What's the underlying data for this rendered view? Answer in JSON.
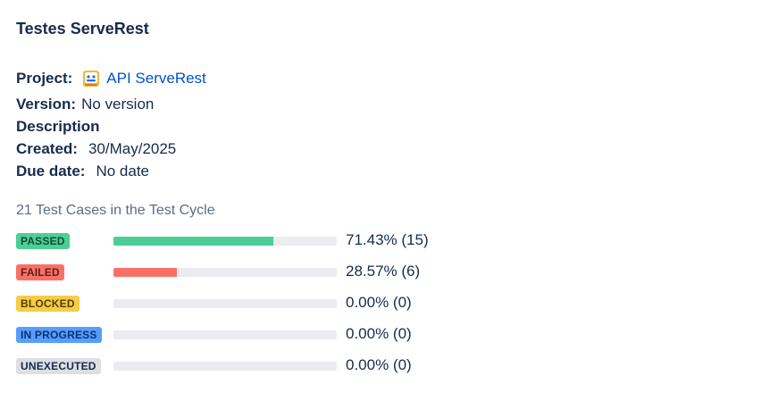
{
  "header": {
    "title": "Testes ServeRest"
  },
  "details": {
    "project_label": "Project:",
    "project_value": "API ServeRest",
    "project_icon": "project-avatar-icon",
    "version_label": "Version:",
    "version_value": "No version",
    "description_label": "Description",
    "created_label": "Created:",
    "created_value": "30/May/2025",
    "due_label": "Due date:",
    "due_value": "No date"
  },
  "summary": {
    "text": "21 Test Cases in the Test Cycle"
  },
  "statuses": [
    {
      "label": "PASSED",
      "percent_text": "71.43% (15)",
      "fraction": 0.7143,
      "badge_bg": "#4bce97",
      "badge_fg": "#164b35",
      "bar_color": "#4bce97"
    },
    {
      "label": "FAILED",
      "percent_text": "28.57% (6)",
      "fraction": 0.2857,
      "badge_bg": "#f87168",
      "badge_fg": "#5d1f1a",
      "bar_color": "#f87168"
    },
    {
      "label": "BLOCKED",
      "percent_text": "0.00% (0)",
      "fraction": 0,
      "badge_bg": "#f5cd47",
      "badge_fg": "#533f04",
      "bar_color": "#f5cd47"
    },
    {
      "label": "IN PROGRESS",
      "percent_text": "0.00% (0)",
      "fraction": 0,
      "badge_bg": "#579dff",
      "badge_fg": "#09326c",
      "bar_color": "#579dff"
    },
    {
      "label": "UNEXECUTED",
      "percent_text": "0.00% (0)",
      "fraction": 0,
      "badge_bg": "#dcdfe4",
      "badge_fg": "#172b4d",
      "bar_color": "#dcdfe4"
    }
  ]
}
